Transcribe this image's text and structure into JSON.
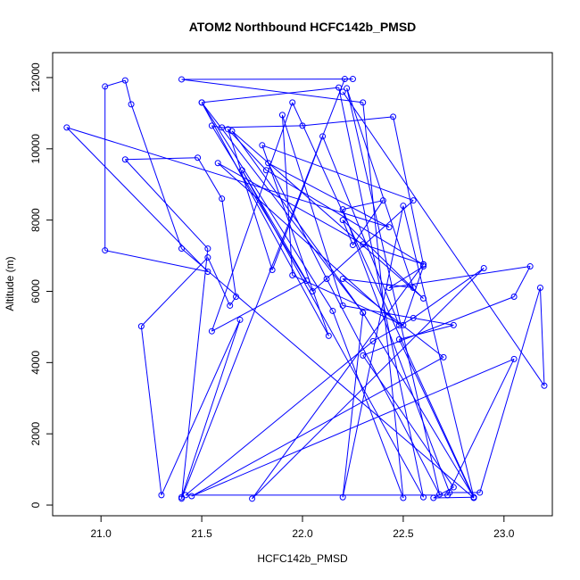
{
  "chart_data": {
    "type": "line",
    "title": "ATOM2 Northbound HCFC142b_PMSD",
    "xlabel": "HCFC142b_PMSD",
    "ylabel": "Altitude (m)",
    "xlim": [
      20.76,
      23.24
    ],
    "ylim": [
      -300,
      12700
    ],
    "x_ticks": [
      "21.0",
      "21.5",
      "22.0",
      "22.5",
      "23.0"
    ],
    "x_tick_values": [
      21.0,
      21.5,
      22.0,
      22.5,
      23.0
    ],
    "y_ticks": [
      "0",
      "2000",
      "4000",
      "6000",
      "8000",
      "10000",
      "12000"
    ],
    "y_tick_values": [
      0,
      2000,
      4000,
      6000,
      8000,
      10000,
      12000
    ],
    "grid": false,
    "marker": "open-circle",
    "series_color": "#0000ff",
    "x": [
      21.4,
      21.69,
      21.3,
      21.2,
      21.53,
      21.64,
      21.67,
      21.6,
      21.48,
      21.12,
      21.53,
      21.4,
      22.21,
      22.25,
      21.4,
      22.3,
      22.5,
      22.15,
      21.5,
      22.18,
      22.6,
      21.7,
      22.02,
      21.55,
      21.95,
      22.85,
      22.3,
      21.5,
      22.13,
      21.8,
      22.55,
      22.05,
      21.55,
      21.6,
      22.0,
      22.45,
      22.6,
      21.82,
      21.63,
      21.85,
      22.1,
      22.48,
      21.58,
      22.3,
      22.6,
      21.75,
      22.9,
      22.55,
      22.35,
      21.42,
      22.72,
      23.05,
      21.45,
      22.7,
      22.2,
      22.55,
      22.22,
      22.68,
      22.12,
      21.83,
      22.43,
      20.83,
      21.53,
      21.02,
      21.02,
      21.12,
      21.15,
      21.4,
      22.85,
      22.48,
      22.75,
      22.2,
      21.9,
      21.95,
      22.5,
      22.6,
      22.43,
      23.13,
      23.05,
      22.3,
      22.75,
      22.65,
      22.85,
      22.5,
      22.2,
      22.3,
      21.65,
      22.6,
      22.2,
      22.25,
      22.4,
      22.2,
      22.73,
      22.88,
      23.18,
      23.2,
      22.2
    ],
    "y": [
      220,
      5200,
      280,
      5020,
      6950,
      5600,
      5850,
      8600,
      9750,
      9700,
      7200,
      180,
      11960,
      11960,
      11950,
      11300,
      200,
      5450,
      11300,
      11720,
      220,
      9400,
      6300,
      4880,
      11300,
      220,
      5400,
      11300,
      4750,
      10100,
      8550,
      6000,
      10650,
      10600,
      10650,
      10900,
      6750,
      9400,
      10550,
      6600,
      10350,
      5050,
      9600,
      7320,
      6760,
      180,
      6650,
      5250,
      4600,
      280,
      280,
      4100,
      250,
      4150,
      6350,
      6100,
      11700,
      300,
      6350,
      9600,
      7800,
      10600,
      6550,
      7150,
      11750,
      11920,
      11250,
      7200,
      200,
      4650,
      5050,
      5600,
      10950,
      6450,
      5050,
      6700,
      6100,
      6700,
      5850,
      4200,
      500,
      200,
      220,
      8400,
      220,
      5400,
      10500,
      5800,
      8000,
      7300,
      8550,
      8300,
      350,
      350,
      6100,
      3350,
      11600
    ]
  }
}
